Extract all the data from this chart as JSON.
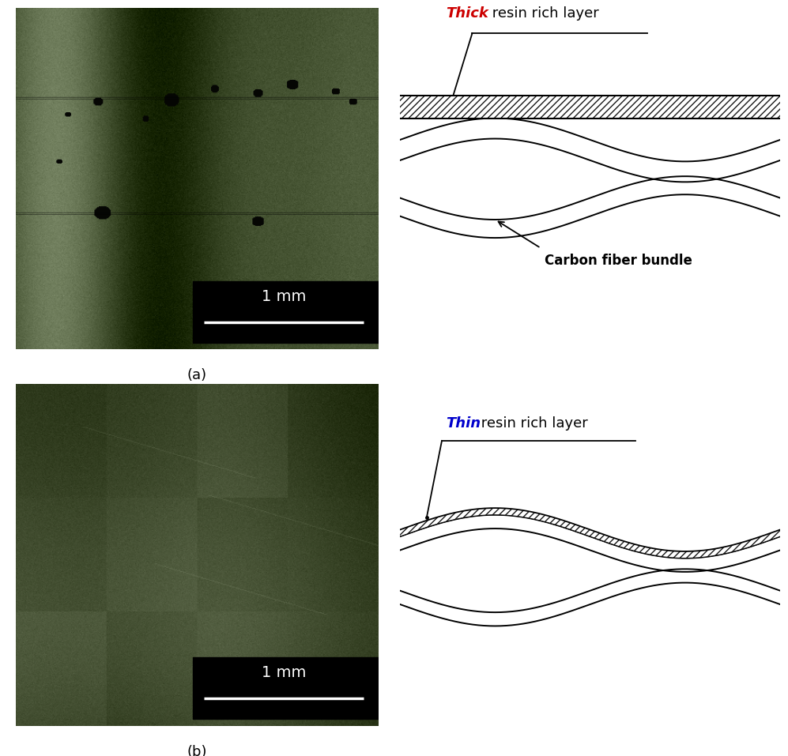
{
  "bg_color": "#ffffff",
  "label_a": "(a)",
  "label_b": "(b)",
  "label_fontsize": 13,
  "thick_word": "Thick",
  "thick_color": "#cc0000",
  "thin_word": "Thin",
  "thin_color": "#0000cc",
  "resin_text": " resin rich layer",
  "carbon_label": "Carbon fiber bundle",
  "text_fontsize": 12,
  "scalebar_text": "1 mm",
  "scalebar_fontsize": 14,
  "img_a_seed": 42,
  "img_b_seed": 99
}
